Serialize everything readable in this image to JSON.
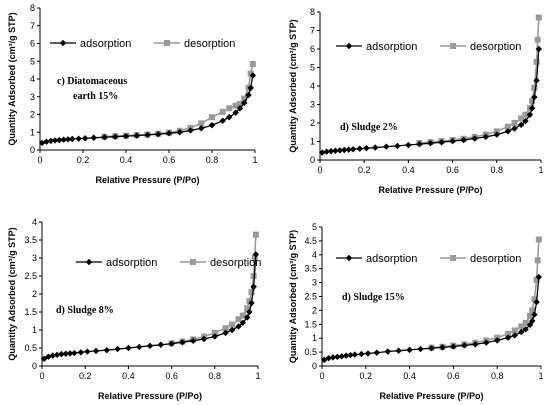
{
  "chart_data": [
    {
      "type": "line",
      "ylabel": "Quantity Adsorbed (cm³/g STP)",
      "xlabel": "Relative Pressure (P/Po)",
      "label_lines": [
        "c) Diatomaceous",
        "earth 15%"
      ],
      "xlim": [
        0,
        1
      ],
      "ylim": [
        0,
        8
      ],
      "xticks": [
        "0",
        "0.2",
        "0.4",
        "0.6",
        "0.8",
        "1"
      ],
      "yticks": [
        "0",
        "1",
        "2",
        "3",
        "4",
        "5",
        "6",
        "7",
        "8"
      ],
      "legend_placement": "top",
      "series": [
        {
          "name": "adsorption",
          "x": [
            0.01,
            0.03,
            0.05,
            0.07,
            0.09,
            0.11,
            0.13,
            0.15,
            0.18,
            0.21,
            0.25,
            0.3,
            0.35,
            0.4,
            0.45,
            0.5,
            0.55,
            0.6,
            0.65,
            0.7,
            0.75,
            0.8,
            0.85,
            0.88,
            0.91,
            0.93,
            0.95,
            0.97,
            0.98,
            0.99
          ],
          "y": [
            0.4,
            0.47,
            0.51,
            0.54,
            0.56,
            0.58,
            0.6,
            0.62,
            0.64,
            0.66,
            0.69,
            0.72,
            0.75,
            0.78,
            0.81,
            0.85,
            0.89,
            0.94,
            1.0,
            1.1,
            1.22,
            1.4,
            1.65,
            1.85,
            2.1,
            2.35,
            2.65,
            3.1,
            3.5,
            4.2
          ]
        },
        {
          "name": "desorption",
          "x": [
            0.99,
            0.98,
            0.97,
            0.95,
            0.93,
            0.91,
            0.88,
            0.85,
            0.8,
            0.75,
            0.7,
            0.65,
            0.6,
            0.55,
            0.5,
            0.45,
            0.4,
            0.35,
            0.3
          ],
          "y": [
            4.85,
            4.3,
            3.5,
            2.9,
            2.6,
            2.5,
            2.35,
            2.15,
            1.85,
            1.5,
            1.25,
            1.08,
            0.98,
            0.92,
            0.87,
            0.84,
            0.81,
            0.78,
            0.75
          ]
        }
      ]
    },
    {
      "type": "line",
      "ylabel": "Quantity Adsorbed (cm³/g STP)",
      "xlabel": "Relative Pressure (P/Po)",
      "label_lines": [
        "d) Sludge 2%"
      ],
      "xlim": [
        0,
        1
      ],
      "ylim": [
        0,
        8
      ],
      "xticks": [
        "0",
        "0.2",
        "0.4",
        "0.6",
        "0.8",
        "1"
      ],
      "yticks": [
        "0",
        "1",
        "2",
        "3",
        "4",
        "5",
        "6",
        "7",
        "8"
      ],
      "legend_placement": "top",
      "series": [
        {
          "name": "adsorption",
          "x": [
            0.01,
            0.03,
            0.05,
            0.07,
            0.09,
            0.11,
            0.13,
            0.15,
            0.18,
            0.21,
            0.25,
            0.3,
            0.35,
            0.4,
            0.45,
            0.5,
            0.55,
            0.6,
            0.65,
            0.7,
            0.75,
            0.8,
            0.85,
            0.88,
            0.91,
            0.93,
            0.95,
            0.96,
            0.97,
            0.98,
            0.99
          ],
          "y": [
            0.4,
            0.45,
            0.48,
            0.5,
            0.52,
            0.54,
            0.56,
            0.58,
            0.61,
            0.64,
            0.67,
            0.72,
            0.76,
            0.81,
            0.86,
            0.91,
            0.96,
            1.02,
            1.08,
            1.16,
            1.25,
            1.37,
            1.55,
            1.7,
            1.9,
            2.1,
            2.45,
            2.8,
            3.4,
            4.3,
            6.0
          ]
        },
        {
          "name": "desorption",
          "x": [
            0.99,
            0.985,
            0.98,
            0.97,
            0.96,
            0.95,
            0.93,
            0.91,
            0.88,
            0.85,
            0.8,
            0.75,
            0.7,
            0.65,
            0.6,
            0.55,
            0.5,
            0.45
          ],
          "y": [
            7.7,
            6.5,
            5.3,
            3.9,
            3.2,
            2.8,
            2.45,
            2.25,
            2.0,
            1.8,
            1.55,
            1.38,
            1.25,
            1.15,
            1.08,
            1.02,
            0.97,
            0.92
          ]
        }
      ]
    },
    {
      "type": "line",
      "ylabel": "Quantity Adsorbed (cm³/g STP)",
      "xlabel": "Relative Pressure (P/Po)",
      "label_lines": [
        "d) Sludge 8%"
      ],
      "xlim": [
        0,
        1
      ],
      "ylim": [
        0,
        4
      ],
      "xticks": [
        "0",
        "0.2",
        "0.4",
        "0.6",
        "0.8",
        "1"
      ],
      "yticks": [
        "0",
        "0.5",
        "1",
        "1.5",
        "2",
        "2.5",
        "3",
        "3.5",
        "4"
      ],
      "legend_placement": "top",
      "series": [
        {
          "name": "adsorption",
          "x": [
            0.01,
            0.03,
            0.05,
            0.07,
            0.09,
            0.11,
            0.13,
            0.15,
            0.18,
            0.21,
            0.25,
            0.3,
            0.35,
            0.4,
            0.45,
            0.5,
            0.55,
            0.6,
            0.65,
            0.7,
            0.75,
            0.8,
            0.85,
            0.88,
            0.91,
            0.93,
            0.95,
            0.96,
            0.97,
            0.98,
            0.99
          ],
          "y": [
            0.2,
            0.26,
            0.29,
            0.31,
            0.33,
            0.34,
            0.35,
            0.36,
            0.38,
            0.4,
            0.42,
            0.44,
            0.47,
            0.5,
            0.53,
            0.56,
            0.59,
            0.62,
            0.66,
            0.7,
            0.75,
            0.82,
            0.92,
            1.0,
            1.1,
            1.2,
            1.35,
            1.5,
            1.75,
            2.2,
            3.1
          ]
        },
        {
          "name": "desorption",
          "x": [
            0.99,
            0.985,
            0.98,
            0.97,
            0.96,
            0.95,
            0.93,
            0.91,
            0.88,
            0.85,
            0.8,
            0.75,
            0.7,
            0.65,
            0.6
          ],
          "y": [
            3.65,
            3.0,
            2.5,
            2.05,
            1.8,
            1.6,
            1.4,
            1.3,
            1.15,
            1.05,
            0.92,
            0.82,
            0.74,
            0.68,
            0.63
          ]
        }
      ]
    },
    {
      "type": "line",
      "ylabel": "Quantity Adsorbed (cm³/g STP)",
      "xlabel": "Relative Pressure (P/Po)",
      "label_lines": [
        "d) Sludge 15%"
      ],
      "xlim": [
        0,
        1
      ],
      "ylim": [
        0,
        5
      ],
      "xticks": [
        "0",
        "0.2",
        "0.4",
        "0.6",
        "0.8",
        "1"
      ],
      "yticks": [
        "0",
        "0.5",
        "1",
        "1.5",
        "2",
        "2.5",
        "3",
        "3.5",
        "4",
        "4.5",
        "5"
      ],
      "legend_placement": "top",
      "series": [
        {
          "name": "adsorption",
          "x": [
            0.01,
            0.03,
            0.05,
            0.07,
            0.09,
            0.11,
            0.13,
            0.15,
            0.18,
            0.21,
            0.25,
            0.3,
            0.35,
            0.4,
            0.45,
            0.5,
            0.55,
            0.6,
            0.65,
            0.7,
            0.75,
            0.8,
            0.85,
            0.88,
            0.91,
            0.93,
            0.95,
            0.96,
            0.97,
            0.98,
            0.99
          ],
          "y": [
            0.22,
            0.28,
            0.31,
            0.33,
            0.35,
            0.37,
            0.39,
            0.41,
            0.43,
            0.45,
            0.48,
            0.52,
            0.55,
            0.58,
            0.61,
            0.64,
            0.67,
            0.7,
            0.74,
            0.78,
            0.84,
            0.92,
            1.02,
            1.1,
            1.22,
            1.32,
            1.48,
            1.62,
            1.85,
            2.3,
            3.2
          ]
        },
        {
          "name": "desorption",
          "x": [
            0.99,
            0.985,
            0.98,
            0.97,
            0.96,
            0.95,
            0.93,
            0.91,
            0.88,
            0.85,
            0.8,
            0.75,
            0.7,
            0.65,
            0.6,
            0.55,
            0.5
          ],
          "y": [
            4.55,
            3.8,
            3.1,
            2.4,
            2.0,
            1.8,
            1.55,
            1.42,
            1.28,
            1.16,
            1.02,
            0.92,
            0.84,
            0.78,
            0.73,
            0.69,
            0.66
          ]
        }
      ]
    }
  ],
  "colors": {
    "adsorption": "#000000",
    "desorption": "#999999",
    "axis": "#000000"
  }
}
